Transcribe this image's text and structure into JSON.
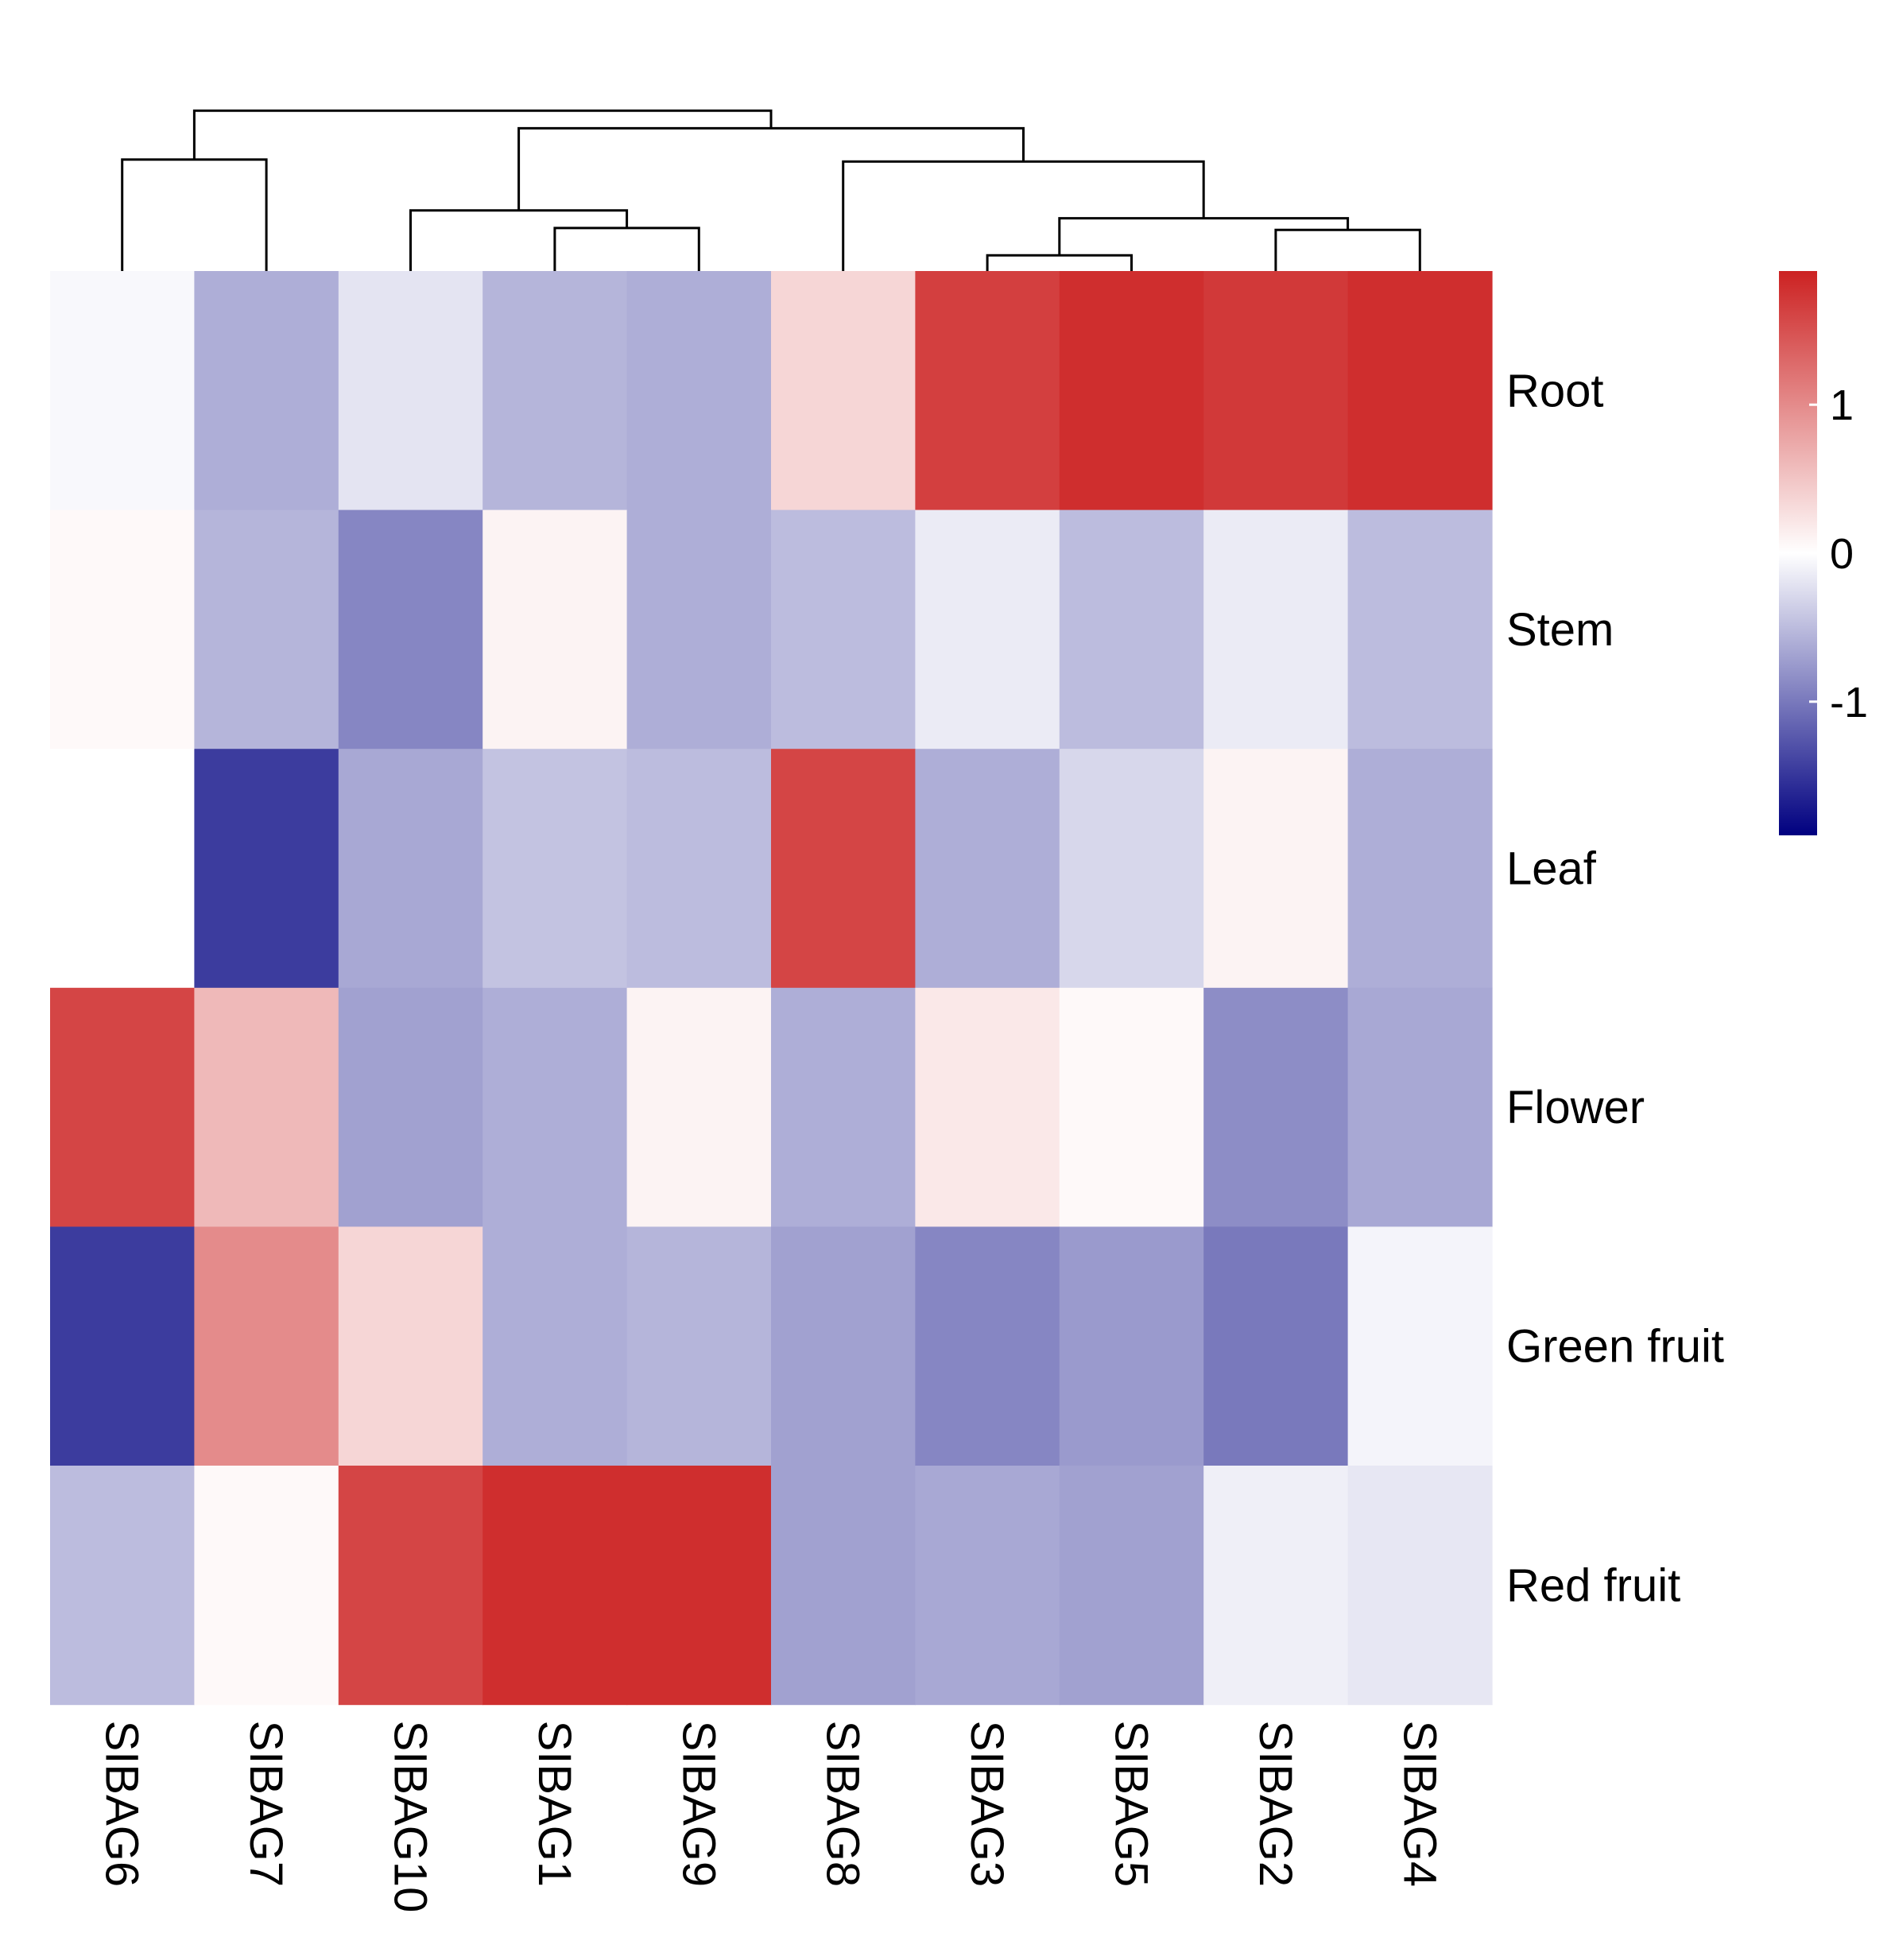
{
  "chart_data": {
    "type": "heatmap",
    "title": "",
    "xlabel": "",
    "ylabel": "",
    "columns": [
      "SIBAG6",
      "SIBAG7",
      "SIBAG10",
      "SIBAG1",
      "SIBAG9",
      "SIBAG8",
      "SIBAG3",
      "SIBAG5",
      "SIBAG2",
      "SIBAG4"
    ],
    "rows": [
      "Root",
      "Stem",
      "Leaf",
      "Flower",
      "Green fruit",
      "Red fruit"
    ],
    "values": [
      [
        -0.05,
        -0.6,
        -0.2,
        -0.55,
        -0.6,
        0.35,
        1.65,
        1.8,
        1.7,
        1.8
      ],
      [
        0.05,
        -0.55,
        -0.9,
        0.1,
        -0.6,
        -0.5,
        -0.15,
        -0.5,
        -0.15,
        -0.5
      ],
      [
        0.0,
        -1.45,
        -0.65,
        -0.45,
        -0.5,
        1.6,
        -0.6,
        -0.3,
        0.1,
        -0.6
      ],
      [
        1.6,
        0.6,
        -0.7,
        -0.6,
        0.1,
        -0.6,
        0.2,
        0.05,
        -0.85,
        -0.65
      ],
      [
        -1.45,
        1.0,
        0.35,
        -0.6,
        -0.55,
        -0.7,
        -0.9,
        -0.75,
        -1.0,
        -0.08
      ],
      [
        -0.5,
        0.05,
        1.6,
        1.8,
        1.8,
        -0.7,
        -0.65,
        -0.7,
        -0.12,
        -0.18
      ]
    ],
    "color_scale": {
      "min": -1.9,
      "max": 1.9,
      "low_color": "#000080",
      "mid_color": "#ffffff",
      "high_color": "#cc2222",
      "ticks": [
        "1",
        "0",
        "-1"
      ],
      "tick_values": [
        1,
        0,
        -1
      ]
    },
    "column_dendrogram": [
      [
        0,
        1,
        0.57
      ],
      [
        3,
        4,
        0.22
      ],
      [
        2,
        11,
        0.31
      ],
      [
        6,
        7,
        0.08
      ],
      [
        8,
        9,
        0.21
      ],
      [
        13,
        14,
        0.27
      ],
      [
        5,
        15,
        0.56
      ],
      [
        12,
        16,
        0.73
      ],
      [
        10,
        17,
        0.82
      ]
    ],
    "legend_position": "right"
  }
}
